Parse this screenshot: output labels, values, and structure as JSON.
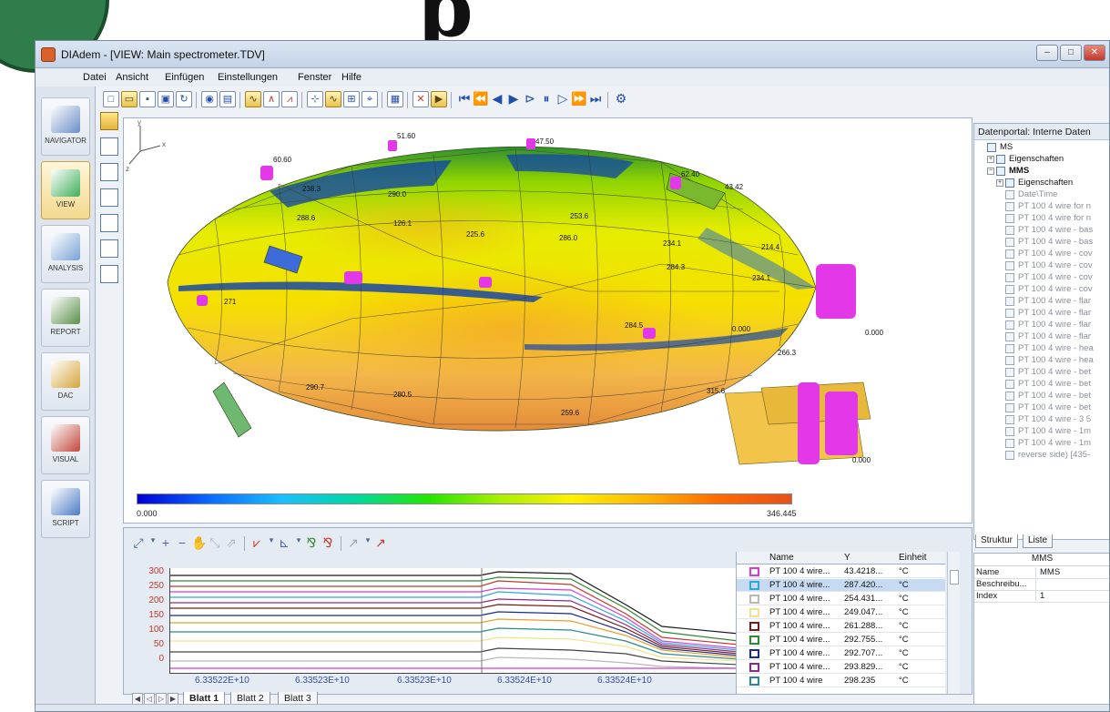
{
  "window": {
    "title": "DIAdem - [VIEW:  Main spectrometer.TDV]",
    "controls": [
      "–",
      "□",
      "✕"
    ]
  },
  "menu": [
    "Datei",
    "Ansicht",
    "Einfügen",
    "Einstellungen",
    "Fenster",
    "Hilfe"
  ],
  "nav": [
    {
      "label": "NAVIGATOR",
      "color": "#6b8fc7"
    },
    {
      "label": "VIEW",
      "color": "#3fae5a"
    },
    {
      "label": "ANALYSIS",
      "color": "#7aa3d6"
    },
    {
      "label": "REPORT",
      "color": "#5b8f4a"
    },
    {
      "label": "DAC",
      "color": "#d4a43a"
    },
    {
      "label": "VISUAL",
      "color": "#c2463c"
    },
    {
      "label": "SCRIPT",
      "color": "#4d7cc4"
    }
  ],
  "view3d": {
    "colorbar_min": "0.000",
    "colorbar_max": "346.445",
    "axis_labels": {
      "x": "x",
      "y": "y",
      "z": "z"
    },
    "point_labels": [
      "51.60",
      "47.50",
      "62.40",
      "43.42",
      "60.60",
      "238.3",
      "290.0",
      "288.6",
      "253.6",
      "126.1",
      "225.6",
      "286.0",
      "234.1",
      "214.4",
      "284.3",
      "234.1",
      "284.5",
      "271",
      "0.000",
      "266.3",
      "290.7",
      "280.5",
      "259.6",
      "315.6",
      "0.000",
      "0.000"
    ]
  },
  "bottom": {
    "y_ticks": [
      "300",
      "250",
      "200",
      "150",
      "100",
      "50",
      "0"
    ],
    "x_ticks": [
      "6.33522E+10",
      "6.33523E+10",
      "6.33523E+10",
      "6.33524E+10",
      "6.33524E+10"
    ],
    "table": {
      "headers": [
        "Name",
        "Y",
        "Einheit"
      ],
      "rows": [
        {
          "name": "PT 100 4 wire...",
          "y": "43.4218...",
          "unit": "°C",
          "color": "#d63bd6"
        },
        {
          "name": "PT 100 4 wire...",
          "y": "287.420...",
          "unit": "°C",
          "color": "#2fa8d8"
        },
        {
          "name": "PT 100 4 wire...",
          "y": "254.431...",
          "unit": "°C",
          "color": "#b8b8b8"
        },
        {
          "name": "PT 100 4 wire...",
          "y": "249.047...",
          "unit": "°C",
          "color": "#f0e38a"
        },
        {
          "name": "PT 100 4 wire...",
          "y": "261.288...",
          "unit": "°C",
          "color": "#7a1a1a"
        },
        {
          "name": "PT 100 4 wire...",
          "y": "292.755...",
          "unit": "°C",
          "color": "#2e8a2e"
        },
        {
          "name": "PT 100 4 wire...",
          "y": "292.707...",
          "unit": "°C",
          "color": "#1a2a8a"
        },
        {
          "name": "PT 100 4 wire...",
          "y": "293.829...",
          "unit": "°C",
          "color": "#8a2a8a"
        },
        {
          "name": "PT 100 4 wire",
          "y": "298.235",
          "unit": "°C",
          "color": "#2a8a8a"
        }
      ]
    },
    "sheets": [
      "Blatt 1",
      "Blatt 2",
      "Blatt 3"
    ]
  },
  "portal": {
    "title": "Datenportal: Interne Daten",
    "tree": [
      {
        "text": "MS",
        "indent": 0,
        "exp": "",
        "icon": "group",
        "style": ""
      },
      {
        "text": "Eigenschaften",
        "indent": 1,
        "exp": "+",
        "icon": "props",
        "style": ""
      },
      {
        "text": "MMS",
        "indent": 1,
        "exp": "−",
        "icon": "group",
        "style": "bold"
      },
      {
        "text": "Eigenschaften",
        "indent": 2,
        "exp": "+",
        "icon": "props",
        "style": ""
      },
      {
        "text": "Date\\Time",
        "indent": 2,
        "exp": "",
        "icon": "ch",
        "style": "dim"
      },
      {
        "text": "PT 100 4 wire for n",
        "indent": 2,
        "exp": "",
        "icon": "ch",
        "style": "dim"
      },
      {
        "text": "PT 100 4 wire for n",
        "indent": 2,
        "exp": "",
        "icon": "ch",
        "style": "dim"
      },
      {
        "text": "PT 100 4 wire - bas",
        "indent": 2,
        "exp": "",
        "icon": "ch",
        "style": "dim"
      },
      {
        "text": "PT 100 4 wire - bas",
        "indent": 2,
        "exp": "",
        "icon": "ch",
        "style": "dim"
      },
      {
        "text": "PT 100 4 wire - cov",
        "indent": 2,
        "exp": "",
        "icon": "ch",
        "style": "dim"
      },
      {
        "text": "PT 100 4 wire - cov",
        "indent": 2,
        "exp": "",
        "icon": "ch",
        "style": "dim"
      },
      {
        "text": "PT 100 4 wire - cov",
        "indent": 2,
        "exp": "",
        "icon": "ch",
        "style": "dim"
      },
      {
        "text": "PT 100 4 wire - cov",
        "indent": 2,
        "exp": "",
        "icon": "ch",
        "style": "dim"
      },
      {
        "text": "PT 100 4 wire - flar",
        "indent": 2,
        "exp": "",
        "icon": "ch",
        "style": "dim"
      },
      {
        "text": "PT 100 4 wire - flar",
        "indent": 2,
        "exp": "",
        "icon": "ch",
        "style": "dim"
      },
      {
        "text": "PT 100 4 wire - flar",
        "indent": 2,
        "exp": "",
        "icon": "ch",
        "style": "dim"
      },
      {
        "text": "PT 100 4 wire - flar",
        "indent": 2,
        "exp": "",
        "icon": "ch",
        "style": "dim"
      },
      {
        "text": "PT 100 4 wire - hea",
        "indent": 2,
        "exp": "",
        "icon": "ch",
        "style": "dim"
      },
      {
        "text": "PT 100 4 wire - hea",
        "indent": 2,
        "exp": "",
        "icon": "ch",
        "style": "dim"
      },
      {
        "text": "PT 100 4 wire - bet",
        "indent": 2,
        "exp": "",
        "icon": "ch",
        "style": "dim"
      },
      {
        "text": "PT 100 4 wire - bet",
        "indent": 2,
        "exp": "",
        "icon": "ch",
        "style": "dim"
      },
      {
        "text": "PT 100 4 wire - bet",
        "indent": 2,
        "exp": "",
        "icon": "ch",
        "style": "dim"
      },
      {
        "text": "PT 100 4 wire - bet",
        "indent": 2,
        "exp": "",
        "icon": "ch",
        "style": "dim"
      },
      {
        "text": "PT 100 4 wire - 3 5",
        "indent": 2,
        "exp": "",
        "icon": "ch",
        "style": "dim"
      },
      {
        "text": "PT 100 4 wire - 1m",
        "indent": 2,
        "exp": "",
        "icon": "ch",
        "style": "dim"
      },
      {
        "text": "PT 100 4 wire - 1m",
        "indent": 2,
        "exp": "",
        "icon": "ch",
        "style": "dim"
      },
      {
        "text": "reverse side) [435-",
        "indent": 2,
        "exp": "",
        "icon": "ch",
        "style": "dim"
      }
    ],
    "tabs": [
      "Struktur",
      "Liste"
    ]
  },
  "props": {
    "title": "MMS",
    "rows": [
      {
        "k": "Name",
        "v": "MMS"
      },
      {
        "k": "Beschreibu...",
        "v": ""
      },
      {
        "k": "Index",
        "v": "1"
      }
    ]
  }
}
